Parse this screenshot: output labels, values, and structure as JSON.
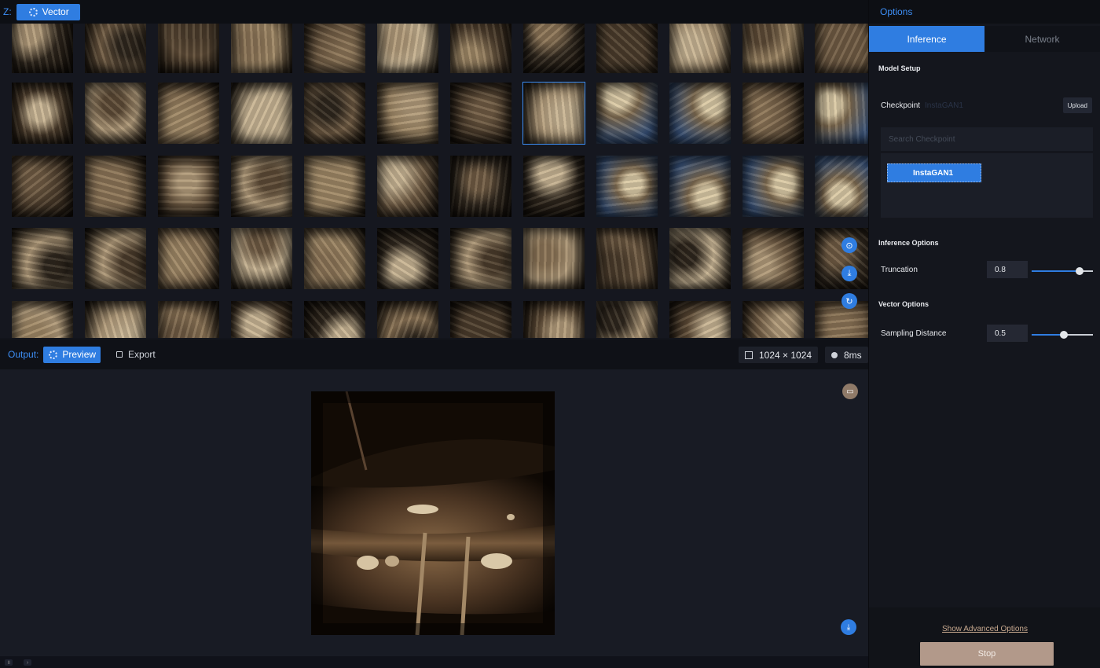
{
  "topbar": {
    "z_label": "Z:",
    "mode_button": "Vector"
  },
  "grid": {
    "rows": 5,
    "cols": 12,
    "selected": {
      "row": 1,
      "col": 7
    },
    "tone_colors": [
      "#6e5a43",
      "#8a7356",
      "#4a3b2b",
      "#b09a7a",
      "#2e261d",
      "#9d8665",
      "#5c4a36",
      "#c7b494"
    ],
    "side_controls": [
      "orbit-icon",
      "download-icon",
      "refresh-icon"
    ]
  },
  "output": {
    "label": "Output:",
    "preview_button": "Preview",
    "export_button": "Export",
    "resolution": "1024 × 1024",
    "time": "8ms"
  },
  "panel": {
    "header": "Options",
    "tabs": [
      {
        "label": "Inference",
        "active": true
      },
      {
        "label": "Network",
        "active": false
      }
    ],
    "model_setup": {
      "title": "Model Setup",
      "checkpoint_label": "Checkpoint",
      "checkpoint_value": "InstaGAN1",
      "upload_button": "Upload",
      "search_placeholder": "Search Checkpoint",
      "items": [
        "InstaGAN1"
      ]
    },
    "inference_options": {
      "title": "Inference Options",
      "truncation_label": "Truncation",
      "truncation_value": "0.8",
      "truncation_fraction": 0.8
    },
    "vector_options": {
      "title": "Vector Options",
      "sampling_label": "Sampling Distance",
      "sampling_value": "0.5",
      "sampling_fraction": 0.5
    },
    "advanced_link": "Show Advanced Options",
    "stop_button": "Stop"
  }
}
